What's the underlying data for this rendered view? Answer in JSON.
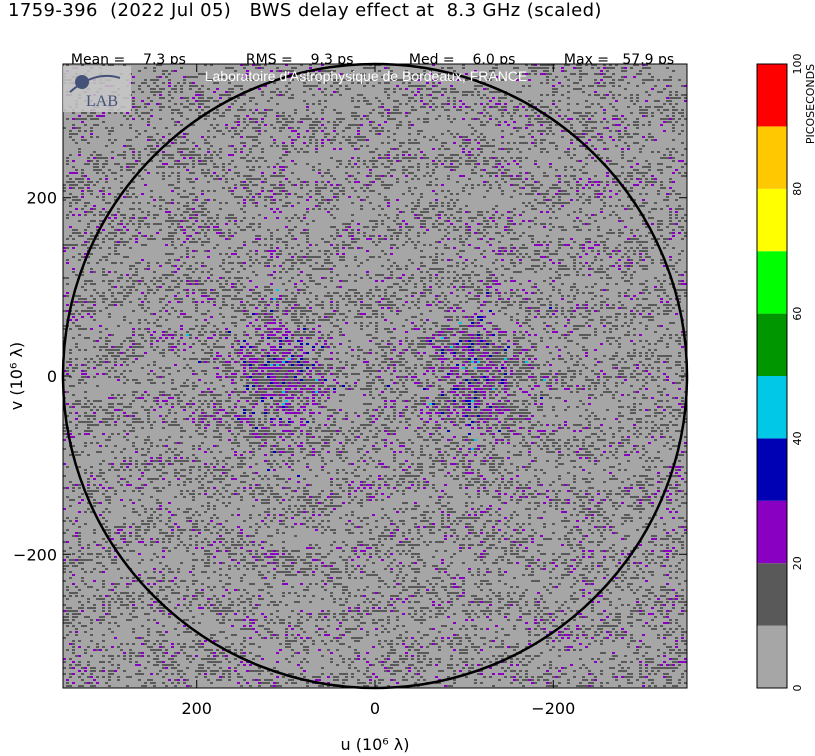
{
  "header": {
    "title": "1759-396  (2022 Jul 05)   BWS delay effect at  8.3 GHz (scaled)",
    "stats": [
      {
        "label": "Mean =",
        "value": "7.3 ps"
      },
      {
        "label": "RMS =",
        "value": "9.3 ps"
      },
      {
        "label": "Med =",
        "value": "6.0 ps"
      },
      {
        "label": "Max =",
        "value": "57.9 ps"
      }
    ]
  },
  "watermark": {
    "text": "Laboratoire d'Astrophysique de Bordeaux, FRANCE",
    "logo_text": "LAB"
  },
  "chart_data": {
    "type": "heatmap",
    "title": "BWS delay effect at 8.3 GHz (scaled)",
    "xlabel": "u  (10⁶ λ)",
    "ylabel": "v  (10⁶ λ)",
    "xlim": [
      350,
      -350
    ],
    "ylim": [
      -350,
      350
    ],
    "x_ticks": [
      200,
      0,
      -200
    ],
    "x_tick_labels": [
      "200",
      "0",
      "−200"
    ],
    "y_ticks": [
      200,
      0,
      -200
    ],
    "y_tick_labels": [
      "200",
      "0",
      "−200"
    ],
    "circle_radius": 350,
    "colorbar": {
      "label": "PICOSECONDS",
      "range": [
        0,
        100
      ],
      "tick_values": [
        0,
        20,
        40,
        60,
        80,
        100
      ],
      "tick_labels": [
        "0",
        "20",
        "40",
        "60",
        "80",
        "100"
      ],
      "bins": [
        {
          "from": 0,
          "to": 10,
          "color": "#a6a6a6"
        },
        {
          "from": 10,
          "to": 20,
          "color": "#595959"
        },
        {
          "from": 20,
          "to": 30,
          "color": "#8a00c2"
        },
        {
          "from": 30,
          "to": 40,
          "color": "#0000b4"
        },
        {
          "from": 40,
          "to": 50,
          "color": "#00c8e6"
        },
        {
          "from": 50,
          "to": 60,
          "color": "#009600"
        },
        {
          "from": 60,
          "to": 70,
          "color": "#00ff00"
        },
        {
          "from": 70,
          "to": 80,
          "color": "#ffff00"
        },
        {
          "from": 80,
          "to": 90,
          "color": "#ffc800"
        },
        {
          "from": 90,
          "to": 100,
          "color": "#ff0000"
        }
      ]
    }
  }
}
